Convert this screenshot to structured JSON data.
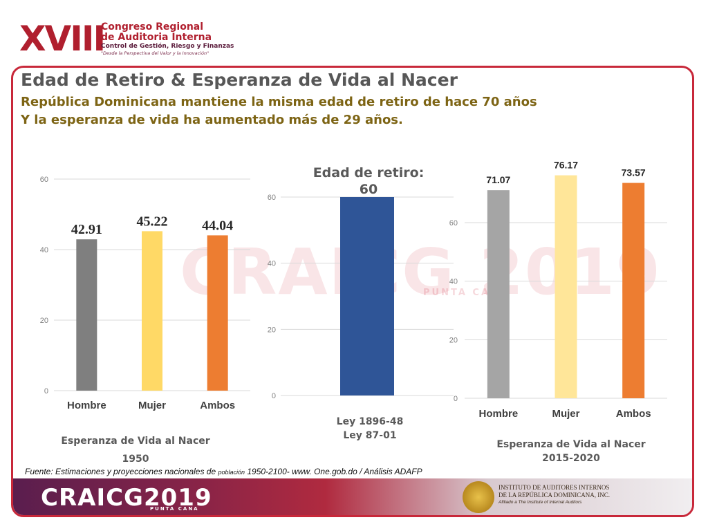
{
  "header_logo": {
    "numeral": "XVIII",
    "line1": "Congreso Regional",
    "line2": "de Auditoria Interna",
    "line3": "Control de Gestión, Riesgo y Finanzas",
    "line4": "\"Desde la Perspectiva del Valor y la Innovación\""
  },
  "title": "Edad de Retiro & Esperanza de Vida al Nacer",
  "subtitle1": "República Dominicana mantiene la misma edad de retiro de hace 70 años",
  "subtitle2": "Y la esperanza de vida ha aumentado más de 29 años.",
  "watermark": {
    "text": "CRAICG 2019",
    "sub": "PUNTA CANA"
  },
  "chart_data": [
    {
      "type": "bar",
      "categories": [
        "Hombre",
        "Mujer",
        "Ambos"
      ],
      "values": [
        42.91,
        45.22,
        44.04
      ],
      "value_labels": [
        "42.91",
        "45.22",
        "44.04"
      ],
      "colors": [
        "#7f7f7f",
        "#ffd966",
        "#ed7d31"
      ],
      "yticks": [
        0,
        20,
        40,
        60
      ],
      "ylim": [
        0,
        60
      ],
      "grid": true,
      "caption": [
        "Esperanza de Vida al Nacer",
        "1950"
      ]
    },
    {
      "type": "bar",
      "categories": [
        ""
      ],
      "values": [
        60
      ],
      "value_labels": [],
      "colors": [
        "#2f5597"
      ],
      "yticks": [
        0,
        20,
        40,
        60
      ],
      "ylim": [
        0,
        60
      ],
      "grid": true,
      "heading": [
        "Edad de retiro:",
        "60"
      ],
      "caption": [
        "Ley 1896-48",
        "Ley 87-01"
      ]
    },
    {
      "type": "bar",
      "categories": [
        "Hombre",
        "Mujer",
        "Ambos"
      ],
      "values": [
        71.07,
        76.17,
        73.57
      ],
      "value_labels": [
        "71.07",
        "76.17",
        "73.57"
      ],
      "colors": [
        "#a5a5a5",
        "#ffe699",
        "#ed7d31"
      ],
      "yticks": [
        0,
        20,
        40,
        60
      ],
      "ylim": [
        0,
        60
      ],
      "grid": true,
      "caption": [
        "Esperanza de Vida al Nacer",
        "2015-2020"
      ]
    }
  ],
  "source": {
    "prefix": "Fuente: Estimaciones y proyecciones nacionales de ",
    "small": "población",
    "suffix": " 1950-2100-  www. One.gob.do / Análisis ADAFP"
  },
  "footer": {
    "logo_main": "CRAICG",
    "logo_year": "2019",
    "logo_sub": "PUNTA CANA",
    "org_line1": "INSTITUTO DE AUDITORES INTERNOS",
    "org_line2": "DE LA REPÚBLICA DOMINICANA, INC.",
    "org_line3": "Afiliado a The Institute of Internal Auditors"
  }
}
